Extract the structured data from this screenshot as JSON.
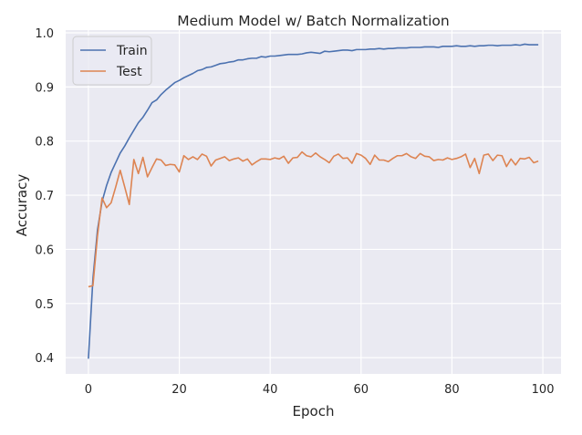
{
  "chart_data": {
    "type": "line",
    "title": "Medium Model w/ Batch Normalization",
    "xlabel": "Epoch",
    "ylabel": "Accuracy",
    "xlim": [
      -5,
      104
    ],
    "ylim": [
      0.37,
      1.005
    ],
    "xticks": [
      0,
      20,
      40,
      60,
      80,
      100
    ],
    "yticks": [
      0.4,
      0.5,
      0.6,
      0.7,
      0.8,
      0.9,
      1.0
    ],
    "ytick_labels": [
      "0.4",
      "0.5",
      "0.6",
      "0.7",
      "0.8",
      "0.9",
      "1.0"
    ],
    "grid": true,
    "legend_position": "top-left",
    "background": "#eaeaf2",
    "x": [
      0,
      1,
      2,
      3,
      4,
      5,
      6,
      7,
      8,
      9,
      10,
      11,
      12,
      13,
      14,
      15,
      16,
      17,
      18,
      19,
      20,
      21,
      22,
      23,
      24,
      25,
      26,
      27,
      28,
      29,
      30,
      31,
      32,
      33,
      34,
      35,
      36,
      37,
      38,
      39,
      40,
      41,
      42,
      43,
      44,
      45,
      46,
      47,
      48,
      49,
      50,
      51,
      52,
      53,
      54,
      55,
      56,
      57,
      58,
      59,
      60,
      61,
      62,
      63,
      64,
      65,
      66,
      67,
      68,
      69,
      70,
      71,
      72,
      73,
      74,
      75,
      76,
      77,
      78,
      79,
      80,
      81,
      82,
      83,
      84,
      85,
      86,
      87,
      88,
      89,
      90,
      91,
      92,
      93,
      94,
      95,
      96,
      97,
      98,
      99
    ],
    "series": [
      {
        "name": "Train",
        "color": "#4c72b0",
        "values": [
          0.398,
          0.546,
          0.636,
          0.688,
          0.718,
          0.742,
          0.76,
          0.778,
          0.791,
          0.806,
          0.82,
          0.834,
          0.844,
          0.857,
          0.871,
          0.876,
          0.886,
          0.894,
          0.901,
          0.908,
          0.912,
          0.917,
          0.921,
          0.925,
          0.93,
          0.932,
          0.936,
          0.937,
          0.94,
          0.943,
          0.944,
          0.946,
          0.947,
          0.95,
          0.95,
          0.952,
          0.953,
          0.953,
          0.956,
          0.955,
          0.957,
          0.957,
          0.958,
          0.959,
          0.96,
          0.96,
          0.96,
          0.961,
          0.963,
          0.964,
          0.963,
          0.962,
          0.966,
          0.965,
          0.966,
          0.967,
          0.968,
          0.968,
          0.967,
          0.969,
          0.969,
          0.969,
          0.97,
          0.97,
          0.971,
          0.97,
          0.971,
          0.971,
          0.972,
          0.972,
          0.972,
          0.973,
          0.973,
          0.973,
          0.974,
          0.974,
          0.974,
          0.973,
          0.975,
          0.975,
          0.975,
          0.976,
          0.975,
          0.975,
          0.976,
          0.975,
          0.976,
          0.976,
          0.977,
          0.977,
          0.976,
          0.977,
          0.977,
          0.977,
          0.978,
          0.977,
          0.979,
          0.978,
          0.978,
          0.978
        ]
      },
      {
        "name": "Test",
        "color": "#dd8452",
        "values": [
          0.531,
          0.533,
          0.625,
          0.695,
          0.677,
          0.686,
          0.715,
          0.746,
          0.715,
          0.683,
          0.766,
          0.74,
          0.77,
          0.734,
          0.751,
          0.767,
          0.765,
          0.755,
          0.757,
          0.756,
          0.743,
          0.773,
          0.766,
          0.771,
          0.766,
          0.776,
          0.772,
          0.754,
          0.765,
          0.768,
          0.771,
          0.764,
          0.767,
          0.769,
          0.763,
          0.767,
          0.756,
          0.762,
          0.767,
          0.767,
          0.766,
          0.769,
          0.767,
          0.772,
          0.759,
          0.769,
          0.77,
          0.78,
          0.773,
          0.771,
          0.778,
          0.771,
          0.766,
          0.76,
          0.772,
          0.776,
          0.768,
          0.769,
          0.759,
          0.777,
          0.774,
          0.768,
          0.757,
          0.774,
          0.765,
          0.765,
          0.762,
          0.768,
          0.773,
          0.773,
          0.777,
          0.771,
          0.768,
          0.777,
          0.772,
          0.771,
          0.764,
          0.766,
          0.765,
          0.769,
          0.766,
          0.768,
          0.771,
          0.776,
          0.751,
          0.768,
          0.74,
          0.774,
          0.776,
          0.764,
          0.774,
          0.773,
          0.753,
          0.767,
          0.756,
          0.768,
          0.767,
          0.77,
          0.76,
          0.763
        ]
      }
    ]
  }
}
